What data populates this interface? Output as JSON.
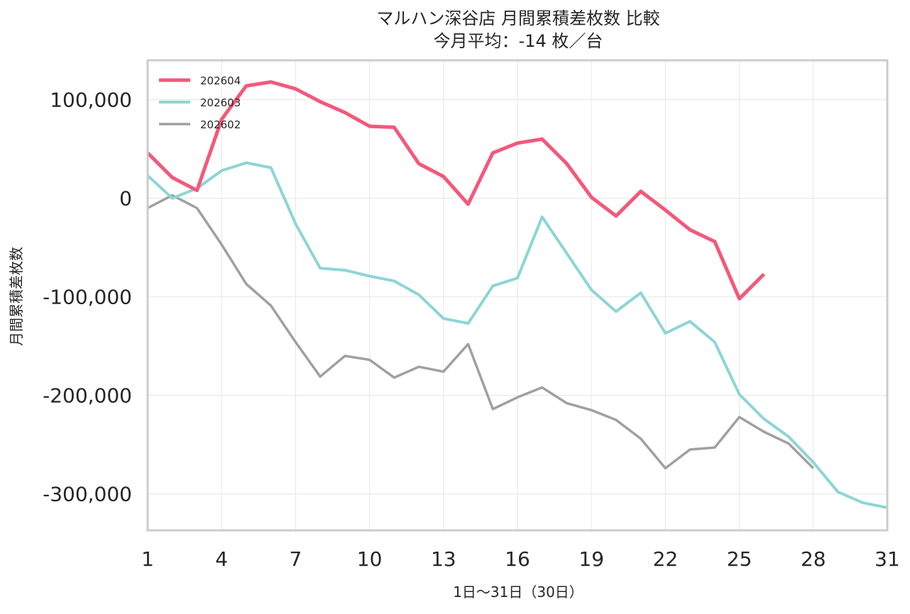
{
  "chart_data": {
    "type": "line",
    "title": "マルハン深谷店 月間累積差枚数 比較",
    "subtitle": "今月平均：-14 枚／台",
    "xlabel": "1日〜31日（30日）",
    "ylabel": "月間累積差枚数",
    "xlim": [
      1,
      31
    ],
    "ylim": [
      -337000,
      140000
    ],
    "x_ticks": [
      1,
      4,
      7,
      10,
      13,
      16,
      19,
      22,
      25,
      28,
      31
    ],
    "y_ticks": [
      100000,
      0,
      -100000,
      -200000,
      -300000
    ],
    "y_tick_labels": [
      "100,000",
      "0",
      "-100,000",
      "-200,000",
      "-300,000"
    ],
    "grid": true,
    "legend_position": "top-left",
    "series": [
      {
        "name": "202604",
        "color": "#f4587a",
        "x": [
          1,
          2,
          3,
          4,
          5,
          6,
          7,
          8,
          9,
          10,
          11,
          12,
          13,
          14,
          15,
          16,
          17,
          18,
          19,
          20,
          21,
          22,
          23,
          24,
          25,
          26
        ],
        "values": [
          46000,
          21000,
          8000,
          80000,
          114000,
          118000,
          111000,
          98000,
          87000,
          73000,
          72000,
          35000,
          22000,
          -6000,
          46000,
          56000,
          60000,
          35000,
          1000,
          -18000,
          7000,
          -12000,
          -32000,
          -44000,
          -102000,
          -77000
        ]
      },
      {
        "name": "202603",
        "color": "#8dd5d5",
        "x": [
          1,
          2,
          3,
          4,
          5,
          6,
          7,
          8,
          9,
          10,
          11,
          12,
          13,
          14,
          15,
          16,
          17,
          18,
          19,
          20,
          21,
          22,
          23,
          24,
          25,
          26,
          27,
          28,
          29,
          30,
          31
        ],
        "values": [
          23000,
          0,
          10000,
          28000,
          36000,
          31000,
          -26000,
          -71000,
          -73000,
          -79000,
          -84000,
          -98000,
          -122000,
          -127000,
          -89000,
          -81000,
          -19000,
          -56000,
          -93000,
          -115000,
          -96000,
          -137000,
          -125000,
          -146000,
          -199000,
          -224000,
          -242000,
          -268000,
          -298000,
          -309000,
          -314000
        ]
      },
      {
        "name": "202602",
        "color": "#a0a0a0",
        "x": [
          1,
          2,
          3,
          4,
          5,
          6,
          7,
          8,
          9,
          10,
          11,
          12,
          13,
          14,
          15,
          16,
          17,
          18,
          19,
          20,
          21,
          22,
          23,
          24,
          25,
          26,
          27,
          28
        ],
        "values": [
          -10000,
          3000,
          -10000,
          -47000,
          -87000,
          -109000,
          -146000,
          -181000,
          -160000,
          -164000,
          -182000,
          -171000,
          -176000,
          -148000,
          -214000,
          -202000,
          -192000,
          -208000,
          -215000,
          -225000,
          -244000,
          -274000,
          -255000,
          -253000,
          -222000,
          -237000,
          -249000,
          -274000
        ]
      }
    ]
  }
}
